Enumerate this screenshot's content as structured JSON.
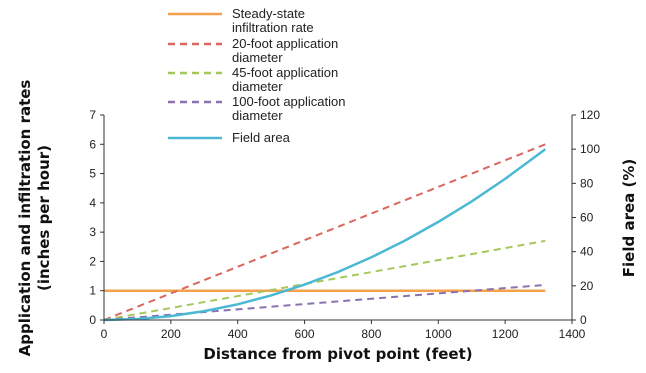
{
  "chart_data": {
    "type": "line",
    "title": "",
    "xlabel": "Distance from pivot point (feet)",
    "ylabel": "Application and infiltration rates (inches per hour)",
    "ylabel_lines": [
      "Application and infiltration rates",
      "(inches per hour)"
    ],
    "y2label": "Field area (%)",
    "xlim": [
      0,
      1400
    ],
    "ylim": [
      0,
      7
    ],
    "y2lim": [
      0,
      120
    ],
    "x_ticks": [
      0,
      200,
      400,
      600,
      800,
      1000,
      1200,
      1400
    ],
    "y_ticks": [
      0,
      1,
      2,
      3,
      4,
      5,
      6,
      7
    ],
    "y2_ticks": [
      0,
      20,
      40,
      60,
      80,
      100,
      120
    ],
    "grid": false,
    "legend_position": "top",
    "series": [
      {
        "name": "Steady-state infiltration rate",
        "legend_lines": [
          "Steady-state",
          "infiltration rate"
        ],
        "axis": "left",
        "style": "solid",
        "color": "#f5a04a",
        "x": [
          0,
          1320
        ],
        "y": [
          1,
          1
        ]
      },
      {
        "name": "20-foot application diameter",
        "legend_lines": [
          "20-foot application",
          "diameter"
        ],
        "axis": "left",
        "style": "dashed",
        "color": "#d9675f",
        "x": [
          0,
          1320
        ],
        "y": [
          0,
          6.0
        ]
      },
      {
        "name": "45-foot application diameter",
        "legend_lines": [
          "45-foot application",
          "diameter"
        ],
        "axis": "left",
        "style": "dashed",
        "color": "#a5c85a",
        "x": [
          0,
          1320
        ],
        "y": [
          0,
          2.7
        ]
      },
      {
        "name": "100-foot application diameter",
        "legend_lines": [
          "100-foot application",
          "diameter"
        ],
        "axis": "left",
        "style": "dashed",
        "color": "#8a72b0",
        "x": [
          0,
          1320
        ],
        "y": [
          0,
          1.2
        ]
      },
      {
        "name": "Field area",
        "legend_lines": [
          "Field area"
        ],
        "axis": "right",
        "style": "solid",
        "color": "#4bb8d4",
        "x": [
          0,
          100,
          200,
          300,
          400,
          500,
          600,
          700,
          800,
          900,
          1000,
          1100,
          1200,
          1320
        ],
        "y": [
          0,
          0.6,
          2.3,
          5.2,
          9.2,
          14.4,
          20.7,
          28.1,
          36.7,
          46.5,
          57.4,
          69.4,
          82.6,
          100
        ]
      }
    ]
  }
}
